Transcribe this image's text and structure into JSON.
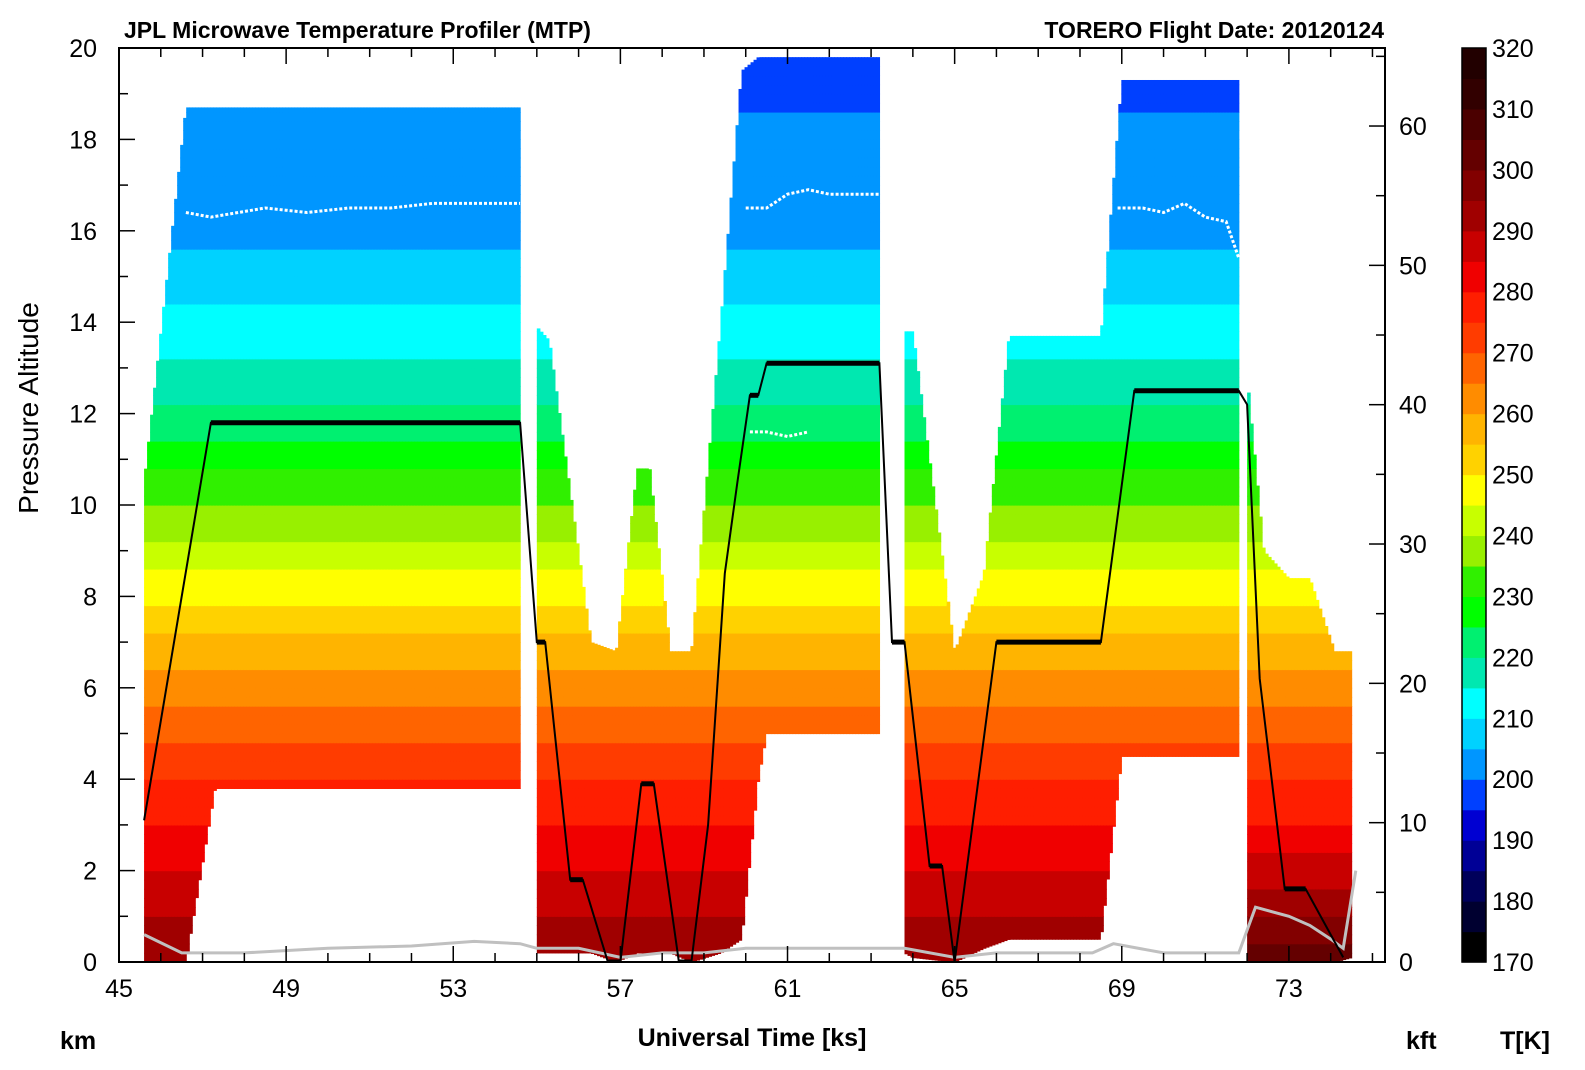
{
  "title_left": "JPL Microwave Temperature Profiler (MTP)",
  "title_right": "TORERO  Flight Date: 20120124",
  "chart_data": {
    "type": "heatmap",
    "title": "JPL Microwave Temperature Profiler (MTP)",
    "subtitle": "TORERO  Flight Date: 20120124",
    "xlabel": "Universal Time [ks]",
    "ylabel": "Pressure Altitude",
    "y_unit_left": "km",
    "y_unit_right": "kft",
    "colorbar_label": "T[K]",
    "xlim": [
      45,
      75.3
    ],
    "ylim": [
      0,
      20
    ],
    "y2lim": [
      0,
      65.6
    ],
    "xticks": [
      45,
      49,
      53,
      57,
      61,
      65,
      69,
      73
    ],
    "yticks": [
      0,
      2,
      4,
      6,
      8,
      10,
      12,
      14,
      16,
      18,
      20
    ],
    "y2ticks": [
      0,
      10,
      20,
      30,
      40,
      50,
      60
    ],
    "colorbar": {
      "min": 170,
      "max": 320,
      "ticks": [
        170,
        180,
        190,
        200,
        210,
        220,
        230,
        240,
        250,
        260,
        270,
        280,
        290,
        300,
        310,
        320
      ],
      "colors": [
        "#000000",
        "#000030",
        "#00005a",
        "#000096",
        "#0000d2",
        "#0040ff",
        "#0096ff",
        "#00d2ff",
        "#00ffff",
        "#00e8b0",
        "#00f070",
        "#00ff00",
        "#30f000",
        "#98f000",
        "#c8ff00",
        "#ffff00",
        "#ffd200",
        "#ffb400",
        "#ff8c00",
        "#ff6400",
        "#ff3c00",
        "#ff1e00",
        "#f00000",
        "#c80000",
        "#a00000",
        "#820000",
        "#640000",
        "#4b0000",
        "#320000",
        "#220000"
      ]
    },
    "aircraft_altitude": {
      "name": "aircraft altitude",
      "color": "#000000",
      "x": [
        45.6,
        47.2,
        54.6,
        55.0,
        55.2,
        55.8,
        56.1,
        56.7,
        57.0,
        57.5,
        57.8,
        58.4,
        58.7,
        59.1,
        59.5,
        59.8,
        60.1,
        60.3,
        60.5,
        63.2,
        63.5,
        63.8,
        64.4,
        64.7,
        65.0,
        66.0,
        68.5,
        69.3,
        71.8,
        72.0,
        72.3,
        72.9,
        73.4,
        74.0,
        74.3
      ],
      "y": [
        3.1,
        11.8,
        11.8,
        7.0,
        7.0,
        1.8,
        1.8,
        0.0,
        0.0,
        3.9,
        3.9,
        0.0,
        0.0,
        3.0,
        8.5,
        10.5,
        12.4,
        12.4,
        13.1,
        13.1,
        7.0,
        7.0,
        2.1,
        2.1,
        0.0,
        7.0,
        7.0,
        12.5,
        12.5,
        12.2,
        6.2,
        1.6,
        1.6,
        0.6,
        0.1
      ]
    },
    "tropopause": {
      "name": "tropopause",
      "color": "#ffffff",
      "segments": [
        {
          "x": [
            46.6,
            47.2,
            48.5,
            49.5,
            50.5,
            51.5,
            52.5,
            53.5,
            54.6
          ],
          "y": [
            16.4,
            16.3,
            16.5,
            16.4,
            16.5,
            16.5,
            16.6,
            16.6,
            16.6
          ]
        },
        {
          "x": [
            60.0,
            60.5,
            61.0,
            61.5,
            62.0,
            62.5,
            63.2
          ],
          "y": [
            16.5,
            16.5,
            16.8,
            16.9,
            16.8,
            16.8,
            16.8
          ]
        },
        {
          "x": [
            60.1,
            60.5,
            61.0,
            61.5
          ],
          "y": [
            11.6,
            11.6,
            11.5,
            11.6
          ]
        },
        {
          "x": [
            68.9,
            69.5,
            70.0,
            70.5,
            71.0,
            71.5,
            71.8
          ],
          "y": [
            16.5,
            16.5,
            16.4,
            16.6,
            16.3,
            16.2,
            15.4
          ]
        }
      ]
    },
    "surface_trace": {
      "name": "surface",
      "color": "#c0c0c0",
      "x": [
        45.6,
        46.5,
        48,
        50,
        52,
        53.5,
        54.6,
        55.0,
        56,
        57,
        58,
        59,
        60,
        61,
        62,
        63.2,
        63.8,
        65,
        66,
        67,
        68.3,
        68.8,
        70,
        71.8,
        72.2,
        73,
        73.5,
        74.0,
        74.3,
        74.6
      ],
      "y": [
        0.6,
        0.2,
        0.2,
        0.3,
        0.35,
        0.45,
        0.4,
        0.3,
        0.3,
        0.1,
        0.2,
        0.2,
        0.3,
        0.3,
        0.3,
        0.3,
        0.3,
        0.1,
        0.2,
        0.2,
        0.2,
        0.4,
        0.2,
        0.2,
        1.2,
        1.0,
        0.8,
        0.5,
        0.3,
        2.0
      ]
    },
    "segments": [
      {
        "t": [
          45.6,
          46.6,
          47.3,
          54.6
        ],
        "top": [
          10.5,
          18.7,
          18.7,
          18.7
        ],
        "bottom": [
          0.0,
          0.0,
          3.8,
          3.8
        ],
        "warm_offset": 0
      },
      {
        "t": [
          55.0,
          55.3,
          56.3,
          56.9,
          57.4,
          57.7,
          58.2,
          58.7,
          59.4,
          59.9
        ],
        "top": [
          13.9,
          13.6,
          7.0,
          6.8,
          10.8,
          10.8,
          6.8,
          6.8,
          14.0,
          19.5
        ],
        "bottom": [
          0.2,
          0.2,
          0.2,
          0.0,
          0.2,
          0.2,
          0.2,
          0.0,
          0.2,
          0.5
        ],
        "warm_offset": 0
      },
      {
        "t": [
          59.9,
          60.3,
          60.5,
          62.0,
          63.2
        ],
        "top": [
          19.5,
          19.8,
          19.8,
          19.8,
          19.8
        ],
        "bottom": [
          0.5,
          4.0,
          5.0,
          5.0,
          5.0
        ],
        "warm_offset": 0
      },
      {
        "t": [
          63.8,
          64.0,
          65.0,
          65.7,
          66.3,
          68.5,
          69.0,
          71.8
        ],
        "top": [
          13.8,
          13.8,
          6.8,
          8.5,
          13.7,
          13.7,
          19.3,
          19.3
        ],
        "bottom": [
          0.2,
          0.1,
          0.0,
          0.3,
          0.5,
          0.5,
          4.5,
          4.5
        ],
        "warm_offset": 0
      },
      {
        "t": [
          72.0,
          72.4,
          73.0,
          73.5,
          74.1,
          74.5
        ],
        "top": [
          12.8,
          9.0,
          8.4,
          8.4,
          6.8,
          6.8
        ],
        "bottom": [
          0.0,
          0.0,
          0.0,
          0.0,
          0.0,
          0.1
        ],
        "warm_offset": 8
      }
    ],
    "reference_profile": {
      "z": [
        0,
        1,
        2,
        3,
        4,
        5,
        6,
        7,
        8,
        9,
        10,
        11,
        12,
        13,
        14,
        15,
        16,
        17,
        18,
        20
      ],
      "T": [
        294,
        290,
        285,
        280,
        275,
        269,
        262,
        256,
        249,
        242,
        235,
        228,
        221,
        216,
        212,
        207,
        203,
        201,
        201,
        198
      ]
    }
  }
}
